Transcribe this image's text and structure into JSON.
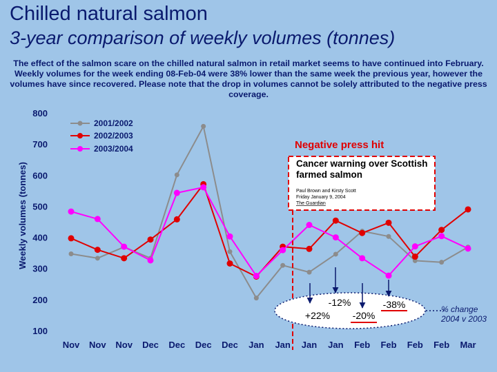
{
  "slide": {
    "title": "Chilled natural salmon",
    "subtitle": "3-year comparison of weekly volumes (tonnes)",
    "description": "The effect of the salmon scare on the chilled natural salmon in retail market seems to have continued into February. Weekly volumes for the week ending 08-Feb-04 were 38% lower than the same week the previous year, however the volumes have since recovered. Please note that the drop in volumes cannot be solely attributed to the negative press coverage."
  },
  "annotation": {
    "label": "Negative press hit",
    "clipping_headline_1": "Cancer warning over Scottish",
    "clipping_headline_2": "farmed salmon",
    "clipping_byline": "Paul Brown and Kirsty Scott",
    "clipping_date": "Friday January 9, 2004",
    "clipping_source": "The Guardian",
    "pct_labels": [
      "+22%",
      "-12%",
      "-20%",
      "-38%"
    ],
    "pct_caption_1": "% change",
    "pct_caption_2": "2004 v 2003"
  },
  "colors": {
    "text": "#0a1a6e",
    "background": "#9fc5e8",
    "series_2001_2002": "#8c8c8c",
    "series_2002_2003": "#e00000",
    "series_2003_2004": "#ff00ff",
    "annotation": "#e00000"
  },
  "chart_data": {
    "type": "line",
    "ylabel": "Weekly volumes (tonnes)",
    "ylim": [
      100,
      800
    ],
    "yticks": [
      100,
      200,
      300,
      400,
      500,
      600,
      700,
      800
    ],
    "grid": false,
    "legend_position": "top-left",
    "categories": [
      "Nov",
      "Nov",
      "Nov",
      "Dec",
      "Dec",
      "Dec",
      "Dec",
      "Jan",
      "Jan",
      "Jan",
      "Jan",
      "Feb",
      "Feb",
      "Feb",
      "Feb",
      "Mar"
    ],
    "series": [
      {
        "name": "2001/2002",
        "color": "#8c8c8c",
        "values": [
          347,
          333,
          369,
          333,
          601,
          757,
          354,
          205,
          310,
          288,
          346,
          420,
          403,
          325,
          320,
          369
        ]
      },
      {
        "name": "2002/2003",
        "color": "#e00000",
        "values": [
          397,
          360,
          333,
          393,
          458,
          571,
          316,
          274,
          370,
          363,
          454,
          414,
          447,
          338,
          424,
          490
        ]
      },
      {
        "name": "2003/2004",
        "color": "#ff00ff",
        "values": [
          483,
          459,
          370,
          326,
          543,
          561,
          403,
          276,
          359,
          440,
          400,
          333,
          277,
          371,
          404,
          364
        ]
      }
    ]
  }
}
